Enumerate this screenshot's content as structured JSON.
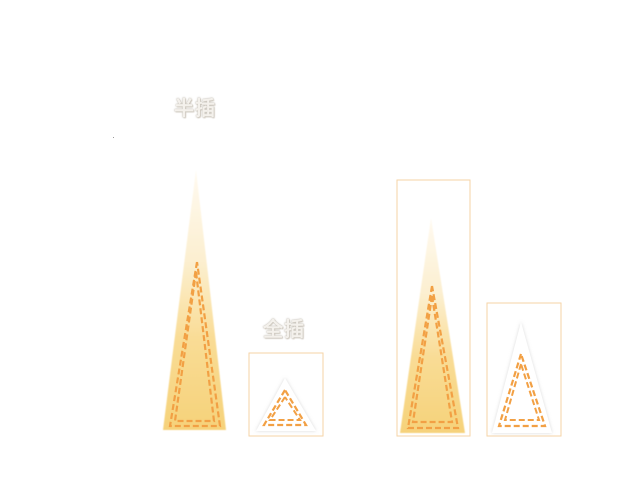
{
  "labels": {
    "left_pair": "半插",
    "small_item": "全插"
  },
  "colors": {
    "fill_light": "#fdf4de",
    "fill_yellow": "#f8d780",
    "stitch_orange": "#f2a044",
    "frame_orange": "#f6d3a6",
    "white_patch": "#ffffff",
    "label_text": "#f4f1ec"
  },
  "items": [
    {
      "name": "tall-triangle-patch-left",
      "style": "yellow-gradient",
      "framed": false
    },
    {
      "name": "small-triangle-patch-left",
      "style": "white",
      "framed": true
    },
    {
      "name": "tall-triangle-patch-right",
      "style": "yellow-gradient",
      "framed": true
    },
    {
      "name": "medium-triangle-patch-right",
      "style": "white",
      "framed": true
    }
  ]
}
